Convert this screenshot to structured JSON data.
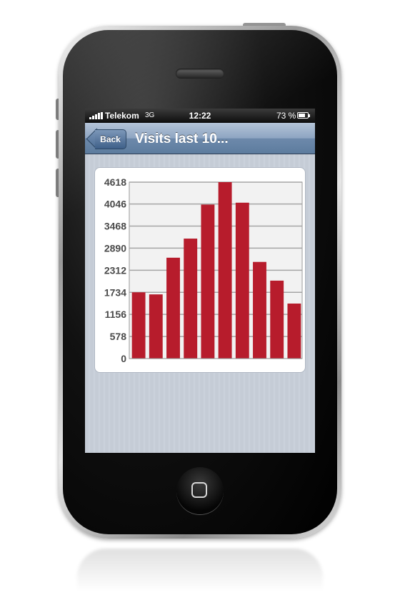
{
  "status_bar": {
    "carrier": "Telekom",
    "network": "3G",
    "time": "12:22",
    "battery_percent": "73 %",
    "battery_level": 0.73
  },
  "nav": {
    "back_label": "Back",
    "title": "Visits last 10..."
  },
  "colors": {
    "bar": "#b71c2c",
    "nav_bar": "#6d89ab",
    "screen_background": "#c4cad3"
  },
  "chart_data": {
    "type": "bar",
    "title": "",
    "xlabel": "",
    "ylabel": "",
    "ylim": [
      0,
      4618
    ],
    "yticks": [
      0,
      578,
      1156,
      1734,
      2312,
      2890,
      3468,
      4046,
      4618
    ],
    "grid": true,
    "values": [
      1734,
      1680,
      2640,
      3140,
      4030,
      4618,
      4080,
      2530,
      2040,
      1440
    ]
  }
}
